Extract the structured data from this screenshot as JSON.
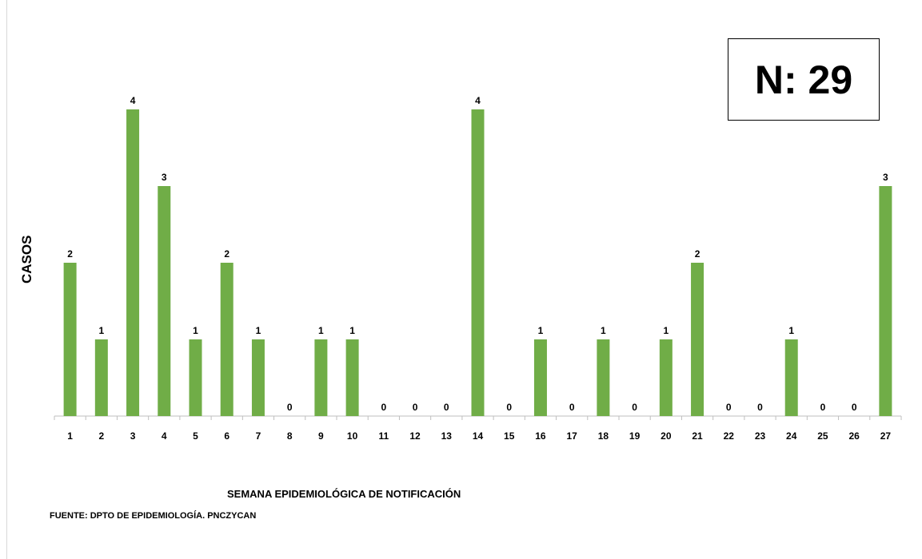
{
  "chart_data": {
    "type": "bar",
    "categories": [
      "1",
      "2",
      "3",
      "4",
      "5",
      "6",
      "7",
      "8",
      "9",
      "10",
      "11",
      "12",
      "13",
      "14",
      "15",
      "16",
      "17",
      "18",
      "19",
      "20",
      "21",
      "22",
      "23",
      "24",
      "25",
      "26",
      "27"
    ],
    "values": [
      2,
      1,
      4,
      3,
      1,
      2,
      1,
      0,
      1,
      1,
      0,
      0,
      0,
      4,
      0,
      1,
      0,
      1,
      0,
      1,
      2,
      0,
      0,
      1,
      0,
      0,
      3
    ],
    "ylabel": "CASOS",
    "xlabel": "SEMANA EPIDEMIOLÓGICA DE NOTIFICACIÓN",
    "ylim": [
      0,
      4
    ],
    "grid": false,
    "bar_color": "#70ad47",
    "data_labels": true
  },
  "annotations": {
    "total": "N: 29",
    "source": "FUENTE: DPTO DE EPIDEMIOLOGÍA. PNCZYCAN"
  }
}
